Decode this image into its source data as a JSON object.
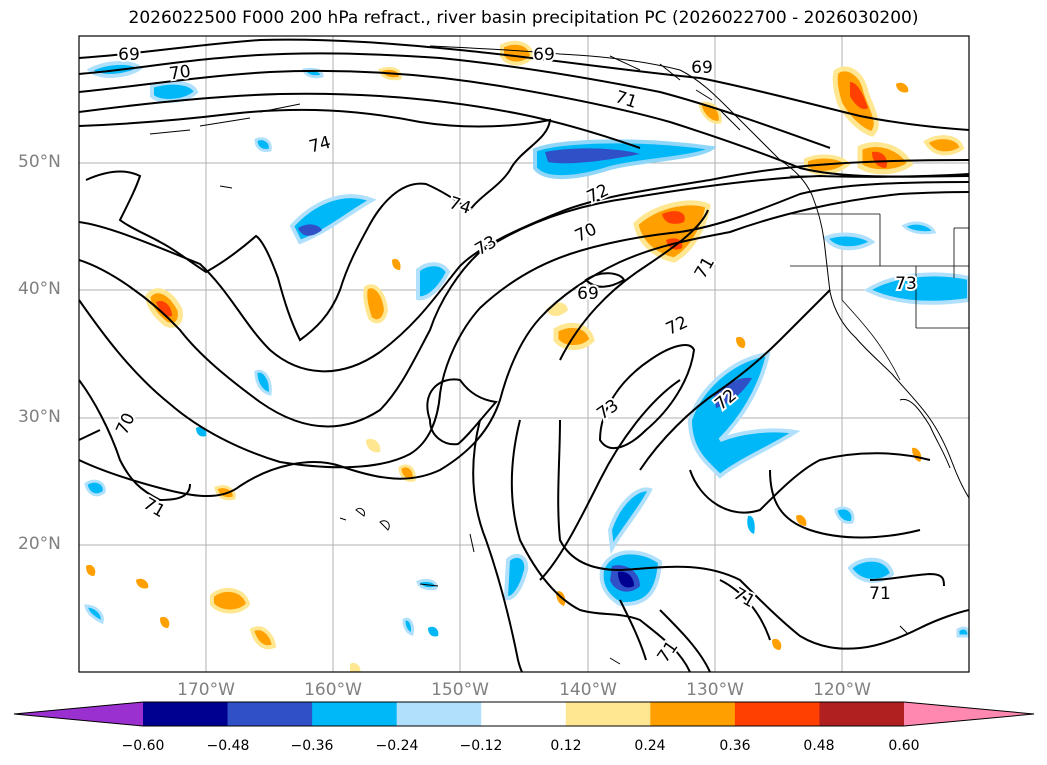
{
  "title": "2026022500 F000 200 hPa refract., river basin precipitation PC (2026022700 - 2026030200)",
  "map": {
    "projection": "plate-carree",
    "lon_range": [
      -180,
      -110
    ],
    "lat_range": [
      10,
      60
    ],
    "gridlines": true,
    "lat_labels": [
      "50°N",
      "40°N",
      "30°N",
      "20°N"
    ],
    "lon_labels": [
      "170°W",
      "160°W",
      "150°W",
      "140°W",
      "130°W",
      "120°W"
    ]
  },
  "contour_labels": [
    "69",
    "70",
    "69",
    "69",
    "71",
    "74",
    "74",
    "72",
    "73",
    "70",
    "69",
    "71",
    "72",
    "73",
    "73",
    "72",
    "70",
    "71",
    "71",
    "71",
    "71"
  ],
  "colorbar": {
    "extend": "both",
    "ticks": [
      "−0.60",
      "−0.48",
      "−0.36",
      "−0.24",
      "−0.12",
      "0.12",
      "0.24",
      "0.36",
      "0.48",
      "0.60"
    ],
    "colors": [
      "#9b30d0",
      "#000090",
      "#3050c8",
      "#00b8f8",
      "#b0e0fc",
      "#ffffff",
      "#ffe690",
      "#ffa000",
      "#ff4000",
      "#b02020",
      "#ff88b0"
    ]
  }
}
